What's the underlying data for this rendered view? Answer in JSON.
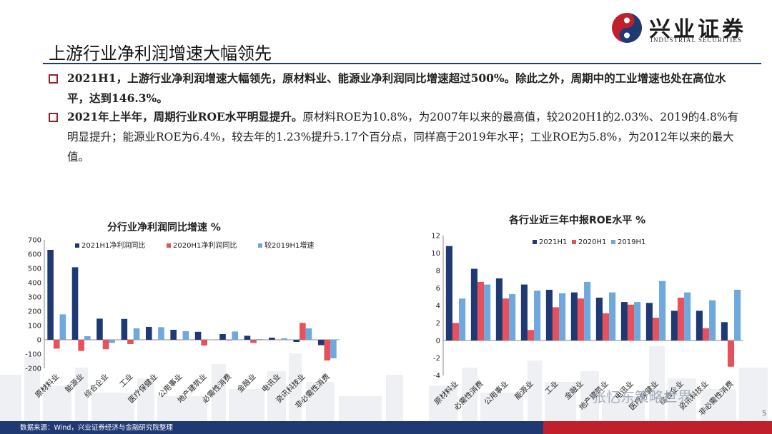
{
  "brand": {
    "name": "兴业证券",
    "sub": "INDUSTRIAL SECURITIES"
  },
  "title": "上游行业净利润增速大幅领先",
  "bullets": [
    {
      "lead": "2021H1，上游行业净利润增速大幅领先，原材料业、能源业净利润同比增速超过500%。除此之外，周期中的工业增速也处在高位水平，达到146.3%。",
      "rest": ""
    },
    {
      "lead": "2021年上半年，周期行业ROE水平明显提升。",
      "rest": "原材料ROE为10.8%，为2007年以来的最高值，较2020H1的2.03%、2019的4.8%有明显提升；能源业ROE为6.4%，较去年的1.23%提升5.17个百分点，同样高于2019年水平；工业ROE为5.8%，为2012年以来的最大值。"
    }
  ],
  "footer": "数据来源：Wind，兴业证券经济与金融研究院整理",
  "watermark": "张忆东策略世界",
  "page_number": "5",
  "colors": {
    "navy": "#1f3a73",
    "red": "#e8505b",
    "light_blue": "#6fa8dc",
    "accent_red": "#9c1f2c"
  },
  "chart_data": [
    {
      "type": "bar",
      "title": "分行业净利润同比增速 %",
      "categories": [
        "原材料业",
        "能源业",
        "综合企业",
        "工业",
        "医疗保健业",
        "公用事业",
        "地产建筑业",
        "必需性消费",
        "金融业",
        "电讯业",
        "资讯科技业",
        "非必需性消费"
      ],
      "series": [
        {
          "name": "2021H1净利润同比",
          "color": "#1f3a73",
          "values": [
            630,
            508,
            148,
            146,
            90,
            70,
            56,
            40,
            28,
            15,
            -15,
            -38
          ]
        },
        {
          "name": "2020H1净利润同比",
          "color": "#e8505b",
          "values": [
            -62,
            -78,
            -66,
            -30,
            -2,
            -3,
            -40,
            -5,
            -22,
            -2,
            118,
            -145
          ]
        },
        {
          "name": "较2019H1增速",
          "color": "#6fa8dc",
          "values": [
            178,
            25,
            -22,
            80,
            88,
            60,
            2,
            58,
            5,
            10,
            80,
            -130
          ]
        }
      ],
      "ylim": [
        -200,
        700
      ],
      "yticks": [
        "-200",
        "-100",
        "0",
        "100",
        "200",
        "300",
        "400",
        "500",
        "600",
        "700"
      ],
      "legend": "top"
    },
    {
      "type": "bar",
      "title": "各行业近三年中报ROE水平 %",
      "categories": [
        "原材料业",
        "必需性消费",
        "公用事业",
        "能源业",
        "工业",
        "金融业",
        "地产建筑业",
        "电讯业",
        "医疗保健业",
        "综合企业",
        "资讯科技业",
        "非必需性消费"
      ],
      "series": [
        {
          "name": "2021H1",
          "color": "#1f3a73",
          "values": [
            10.8,
            8.2,
            7.1,
            6.4,
            5.8,
            5.5,
            4.9,
            4.4,
            4.3,
            3.4,
            3.4,
            2.1
          ]
        },
        {
          "name": "2020H1",
          "color": "#e8505b",
          "values": [
            2.0,
            6.7,
            4.8,
            1.2,
            3.8,
            4.8,
            3.1,
            4.1,
            2.6,
            4.9,
            1.4,
            -3.0
          ]
        },
        {
          "name": "2019H1",
          "color": "#6fa8dc",
          "values": [
            4.8,
            6.4,
            5.3,
            5.7,
            5.4,
            6.7,
            5.5,
            4.4,
            6.8,
            5.5,
            4.6,
            5.8
          ]
        }
      ],
      "ylim": [
        -4,
        12
      ],
      "yticks": [
        "-4",
        "-2",
        "0",
        "2",
        "4",
        "6",
        "8",
        "10",
        "12"
      ],
      "legend": "top"
    }
  ]
}
